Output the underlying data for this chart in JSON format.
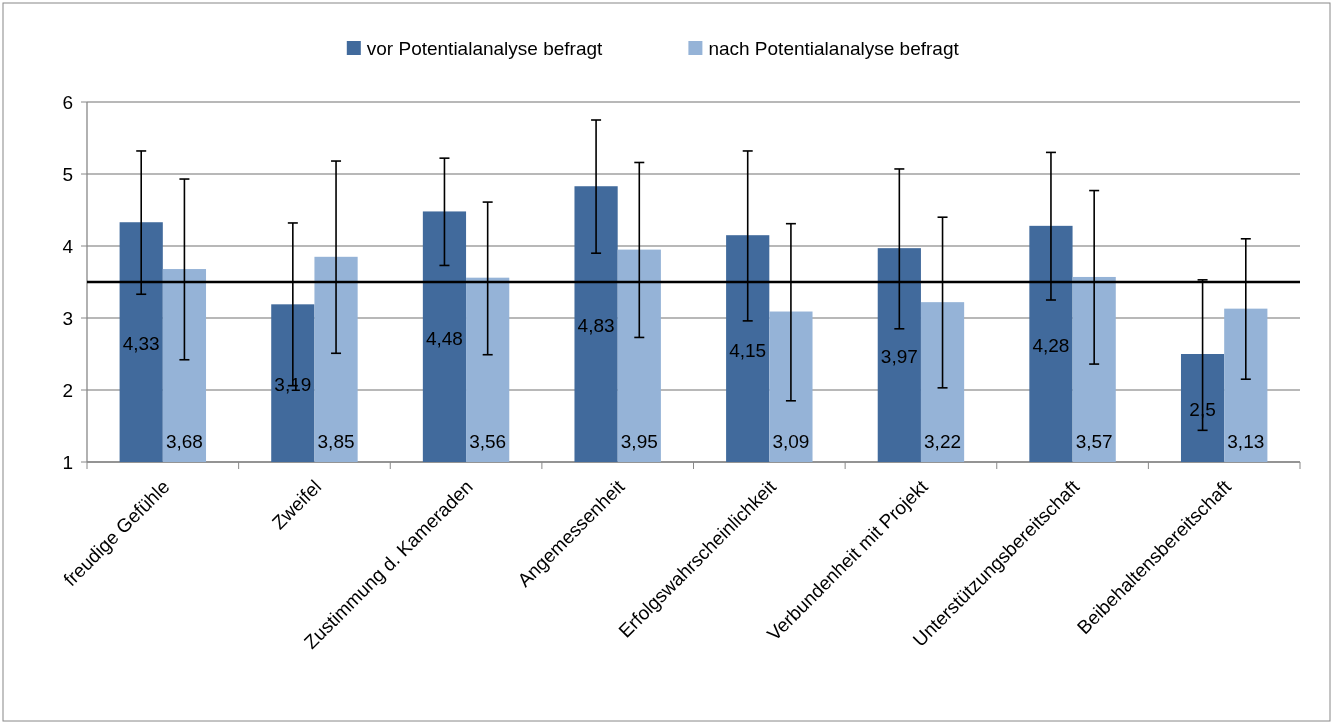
{
  "chart_data": {
    "type": "bar",
    "categories": [
      "freudige Gefühle",
      "Zweifel",
      "Zustimmung d. Kameraden",
      "Angemessenheit",
      "Erfolgswahrscheinlichkeit",
      "Verbundenheit mit Projekt",
      "Unterstützungsbereitschaft",
      "Beibehaltensbereitschaft"
    ],
    "series": [
      {
        "name": "vor Potentialanalyse befragt",
        "color": "#416a9c",
        "values": [
          4.33,
          3.19,
          4.48,
          4.83,
          4.15,
          3.97,
          4.28,
          2.5
        ],
        "value_labels": [
          "4,33",
          "3,19",
          "4,48",
          "4,83",
          "4,15",
          "3,97",
          "4,28",
          "2,5"
        ],
        "errors": [
          [
            3.33,
            5.32
          ],
          [
            2.06,
            4.32
          ],
          [
            3.73,
            5.22
          ],
          [
            3.9,
            5.75
          ],
          [
            2.96,
            5.32
          ],
          [
            2.85,
            5.07
          ],
          [
            3.25,
            5.3
          ],
          [
            1.44,
            3.53
          ]
        ]
      },
      {
        "name": "nach Potentialanalyse befragt",
        "color": "#95b3d7",
        "values": [
          3.68,
          3.85,
          3.56,
          3.95,
          3.09,
          3.22,
          3.57,
          3.13
        ],
        "value_labels": [
          "3,68",
          "3,85",
          "3,56",
          "3,95",
          "3,09",
          "3,22",
          "3,57",
          "3,13"
        ],
        "errors": [
          [
            2.42,
            4.93
          ],
          [
            2.51,
            5.18
          ],
          [
            2.49,
            4.61
          ],
          [
            2.73,
            5.16
          ],
          [
            1.85,
            4.31
          ],
          [
            2.03,
            4.4
          ],
          [
            2.36,
            4.77
          ],
          [
            2.15,
            4.1
          ]
        ]
      }
    ],
    "ylim": [
      1,
      6
    ],
    "yticks": [
      1,
      2,
      3,
      4,
      5,
      6
    ],
    "grid": "y",
    "legend": "top",
    "ref_lines": [
      {
        "axis": "y",
        "value": 3.5,
        "color": "#000000"
      }
    ]
  }
}
